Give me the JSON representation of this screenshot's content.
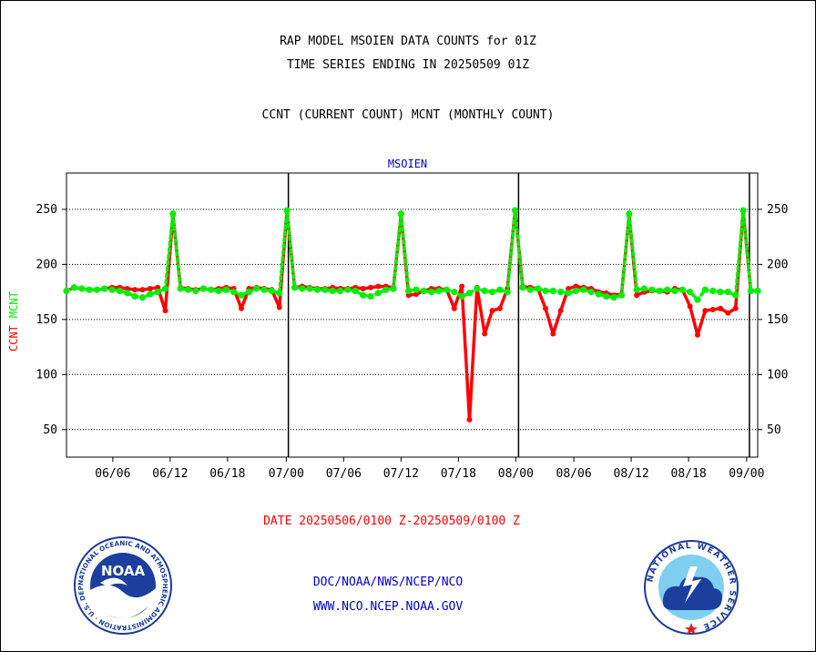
{
  "titles": {
    "line1": "RAP MODEL MSOIEN DATA COUNTS for 01Z",
    "line2": "TIME SERIES ENDING IN 20250509 01Z",
    "line3": "CCNT (CURRENT COUNT) MCNT (MONTHLY COUNT)"
  },
  "date_range": "DATE 20250506/0100 Z-20250509/0100 Z",
  "footer": {
    "line1": "DOC/NOAA/NWS/NCEP/NCO",
    "line2": "WWW.NCO.NCEP.NOAA.GOV"
  },
  "logos": {
    "noaa": {
      "text": "NOAA",
      "ring_text": "NATIONAL OCEANIC AND ATMOSPHERIC ADMINISTRATION · U.S. DEPARTMENT OF COMMERCE ·"
    },
    "nws": {
      "ring_text": "NATIONAL WEATHER SERVICE"
    }
  },
  "colors": {
    "ccnt": "#ff0000",
    "mcnt": "#00ee00",
    "subtitle": "#0000cc",
    "date": "#ff0000"
  },
  "chart_data": {
    "type": "line",
    "title": "MSOIEN",
    "ylabel_parts": [
      {
        "text": "CCNT",
        "color": "#ff0000"
      },
      {
        "text": "MCNT",
        "color": "#00ee00"
      }
    ],
    "ylim": [
      25,
      283
    ],
    "yticks": [
      50,
      100,
      150,
      200,
      250
    ],
    "xlim": [
      0,
      100
    ],
    "xticks": [
      {
        "x": 6.7,
        "label": "06/06"
      },
      {
        "x": 15.0,
        "label": "06/12"
      },
      {
        "x": 23.3,
        "label": "06/18"
      },
      {
        "x": 31.8,
        "label": "07/00"
      },
      {
        "x": 40.1,
        "label": "07/06"
      },
      {
        "x": 48.4,
        "label": "07/12"
      },
      {
        "x": 56.7,
        "label": "07/18"
      },
      {
        "x": 65.0,
        "label": "08/00"
      },
      {
        "x": 73.4,
        "label": "08/06"
      },
      {
        "x": 81.7,
        "label": "08/12"
      },
      {
        "x": 90.0,
        "label": "08/18"
      },
      {
        "x": 98.4,
        "label": "09/00"
      }
    ],
    "day_boundaries": [
      32.1,
      65.4,
      98.8
    ],
    "grid": true,
    "series": [
      {
        "name": "CCNT",
        "x": [
          0.0,
          1.1,
          2.2,
          3.3,
          4.4,
          5.5,
          6.6,
          7.7,
          8.8,
          9.9,
          11.0,
          12.1,
          13.2,
          14.3,
          15.4,
          16.5,
          17.6,
          18.7,
          19.8,
          20.9,
          22.0,
          23.1,
          24.2,
          25.3,
          26.4,
          27.5,
          28.6,
          29.7,
          30.8,
          31.9,
          33.0,
          34.1,
          35.2,
          36.3,
          37.4,
          38.5,
          39.6,
          40.7,
          41.8,
          42.9,
          44.0,
          45.1,
          46.2,
          47.3,
          48.4,
          49.5,
          50.6,
          51.7,
          52.8,
          53.9,
          55.0,
          56.1,
          57.2,
          58.3,
          59.4,
          60.5,
          61.6,
          62.7,
          63.8,
          64.9,
          66.0,
          67.1,
          68.2,
          69.3,
          70.4,
          71.5,
          72.6,
          73.7,
          74.8,
          75.9,
          77.0,
          78.1,
          79.2,
          80.3,
          81.4,
          82.5,
          83.6,
          84.7,
          85.8,
          86.9,
          88.0,
          89.1,
          90.2,
          91.3,
          92.4,
          93.5,
          94.6,
          95.7,
          96.8,
          97.9,
          99.0,
          100.0
        ],
        "values": [
          176,
          179,
          178,
          177,
          177,
          178,
          179,
          179,
          178,
          177,
          177,
          178,
          179,
          158,
          245,
          179,
          178,
          177,
          178,
          177,
          178,
          179,
          178,
          160,
          178,
          179,
          178,
          177,
          161,
          249,
          179,
          180,
          179,
          178,
          178,
          179,
          178,
          178,
          179,
          178,
          179,
          180,
          180,
          179,
          245,
          172,
          173,
          176,
          178,
          178,
          177,
          160,
          180,
          59,
          179,
          137,
          158,
          160,
          178,
          249,
          180,
          179,
          178,
          160,
          137,
          158,
          178,
          180,
          179,
          178,
          175,
          174,
          172,
          173,
          245,
          172,
          175,
          176,
          176,
          175,
          178,
          177,
          162,
          136,
          158,
          159,
          160,
          156,
          160,
          249,
          176,
          176
        ]
      },
      {
        "name": "MCNT",
        "x": [
          0.0,
          1.1,
          2.2,
          3.3,
          4.4,
          5.5,
          6.6,
          7.7,
          8.8,
          9.9,
          11.0,
          12.1,
          13.2,
          14.3,
          15.4,
          16.5,
          17.6,
          18.7,
          19.8,
          20.9,
          22.0,
          23.1,
          24.2,
          25.3,
          26.4,
          27.5,
          28.6,
          29.7,
          30.8,
          31.9,
          33.0,
          34.1,
          35.2,
          36.3,
          37.4,
          38.5,
          39.6,
          40.7,
          41.8,
          42.9,
          44.0,
          45.1,
          46.2,
          47.3,
          48.4,
          49.5,
          50.6,
          51.7,
          52.8,
          53.9,
          55.0,
          56.1,
          57.2,
          58.3,
          59.4,
          60.5,
          61.6,
          62.7,
          63.8,
          64.9,
          66.0,
          67.1,
          68.2,
          69.3,
          70.4,
          71.5,
          72.6,
          73.7,
          74.8,
          75.9,
          77.0,
          78.1,
          79.2,
          80.3,
          81.4,
          82.5,
          83.6,
          84.7,
          85.8,
          86.9,
          88.0,
          89.1,
          90.2,
          91.3,
          92.4,
          93.5,
          94.6,
          95.7,
          96.8,
          97.9,
          99.0,
          100.0
        ],
        "values": [
          176,
          179,
          178,
          177,
          177,
          178,
          177,
          176,
          174,
          171,
          170,
          173,
          175,
          178,
          246,
          178,
          177,
          176,
          178,
          177,
          176,
          177,
          175,
          172,
          175,
          178,
          177,
          176,
          174,
          249,
          179,
          178,
          178,
          177,
          177,
          176,
          176,
          177,
          176,
          172,
          171,
          174,
          177,
          178,
          246,
          176,
          177,
          176,
          175,
          176,
          177,
          175,
          171,
          174,
          178,
          176,
          175,
          177,
          175,
          249,
          179,
          177,
          178,
          176,
          176,
          175,
          174,
          176,
          177,
          175,
          173,
          171,
          170,
          172,
          246,
          177,
          178,
          177,
          176,
          177,
          176,
          177,
          175,
          168,
          177,
          176,
          175,
          175,
          172,
          249,
          176,
          176
        ]
      }
    ]
  }
}
